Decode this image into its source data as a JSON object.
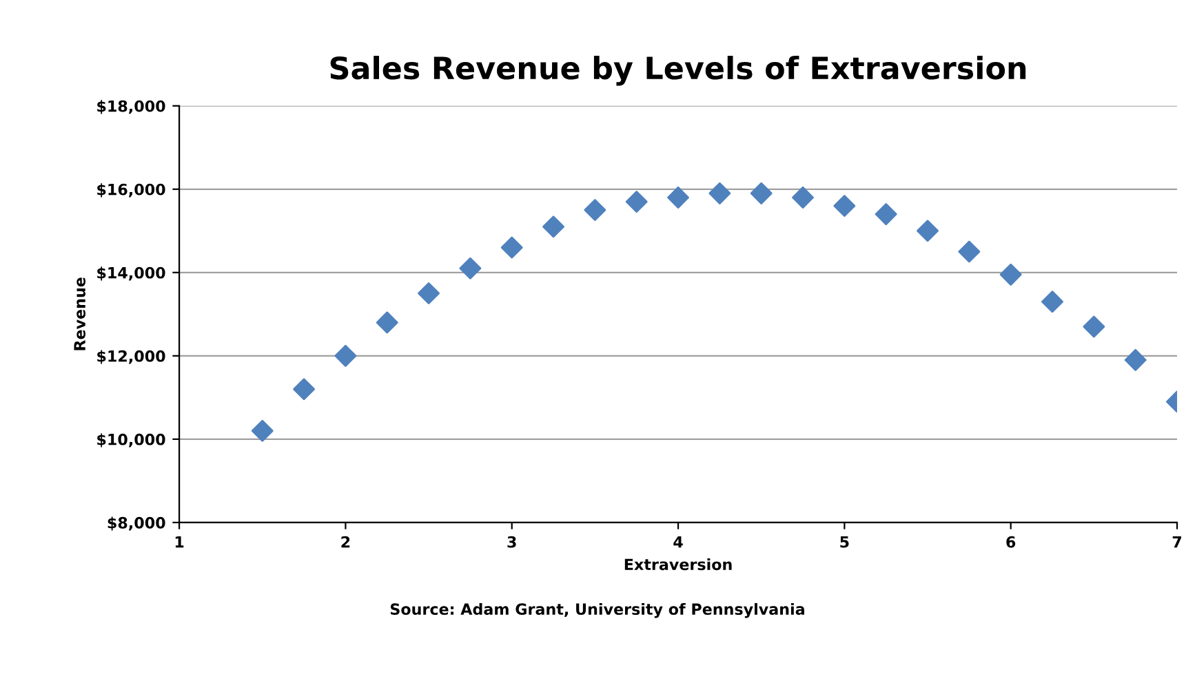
{
  "chart_data": {
    "type": "scatter",
    "title": "Sales Revenue by Levels of Extraversion",
    "xlabel": "Extraversion",
    "ylabel": "Revenue",
    "annotations": [
      "Source: Adam Grant, University of Pennsylvania"
    ],
    "x": [
      1.5,
      1.75,
      2.0,
      2.25,
      2.5,
      2.75,
      3.0,
      3.25,
      3.5,
      3.75,
      4.0,
      4.25,
      4.5,
      4.75,
      5.0,
      5.25,
      5.5,
      5.75,
      6.0,
      6.25,
      6.5,
      6.75,
      7.0
    ],
    "series": [
      {
        "color": "#4f81bd",
        "values": [
          10200,
          11200,
          12000,
          12800,
          13500,
          14100,
          14600,
          15100,
          15500,
          15700,
          15800,
          15900,
          15900,
          15800,
          15600,
          15400,
          15000,
          14500,
          13950,
          13300,
          12700,
          11900,
          10900
        ]
      }
    ],
    "marker": "diamond",
    "grid": "y",
    "xlim": [
      1,
      7
    ],
    "xticks": [
      1,
      2,
      3,
      4,
      5,
      6,
      7
    ],
    "ylim": [
      8000,
      18000
    ],
    "yticks": [
      {
        "value": 8000,
        "label": "$8,000"
      },
      {
        "value": 10000,
        "label": "$10,000"
      },
      {
        "value": 12000,
        "label": "$12,000"
      },
      {
        "value": 14000,
        "label": "$14,000"
      },
      {
        "value": 16000,
        "label": "$16,000"
      },
      {
        "value": 18000,
        "label": "$18,000"
      }
    ]
  }
}
